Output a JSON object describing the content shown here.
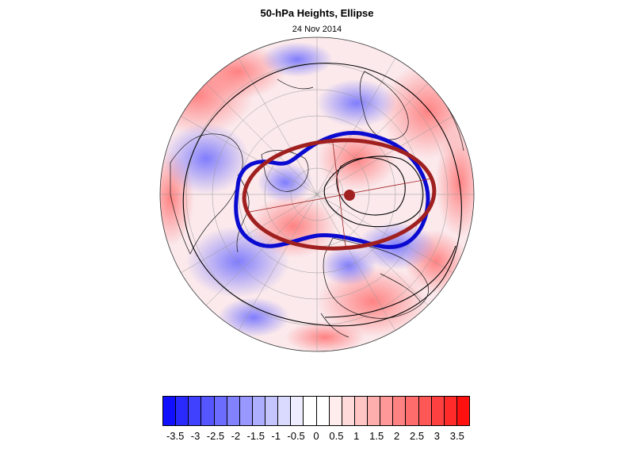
{
  "title": "50-hPa Heights, Ellipse",
  "subtitle": "24 Nov 2014",
  "colorbar": {
    "labels": [
      "-3.5",
      "-3",
      "-2.5",
      "-2",
      "-1.5",
      "-1",
      "-0.5",
      "0",
      "0.5",
      "1",
      "1.5",
      "2",
      "2.5",
      "3",
      "3.5"
    ],
    "colors": [
      "#1010ff",
      "#2a2aff",
      "#4040ff",
      "#5656ff",
      "#6c6cff",
      "#8282ff",
      "#9898ff",
      "#aeaeff",
      "#c4c4ff",
      "#dadaff",
      "#ededff",
      "#ffffff",
      "#ffffff",
      "#ffeded",
      "#ffdada",
      "#ffc4c4",
      "#ffaeae",
      "#ff9898",
      "#ff8282",
      "#ff6c6c",
      "#ff5656",
      "#ff4040",
      "#ff2a2a",
      "#ff1010"
    ]
  },
  "styles": {
    "vortex_edge_color": "#0a0ad0",
    "ellipse_color": "#a02020",
    "land_outline_color": "#111111",
    "graticule_color": "#999999"
  }
}
